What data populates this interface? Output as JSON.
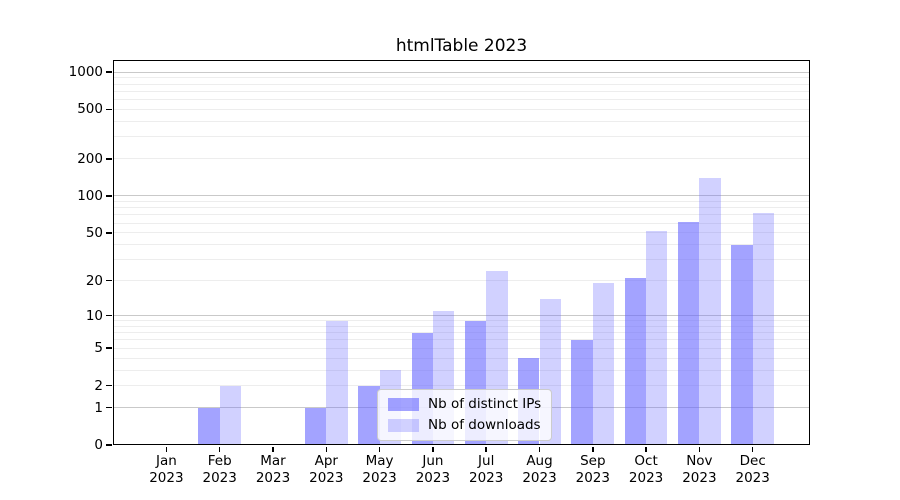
{
  "title": "htmlTable 2023",
  "chart_data": {
    "type": "bar",
    "title": "htmlTable 2023",
    "x_tick_months": [
      "Jan",
      "Feb",
      "Mar",
      "Apr",
      "May",
      "Jun",
      "Jul",
      "Aug",
      "Sep",
      "Oct",
      "Nov",
      "Dec"
    ],
    "x_tick_year": "2023",
    "series": [
      {
        "name": "Nb of distinct IPs",
        "color": "rgba(102,102,255,0.6)",
        "values": [
          0,
          1,
          0,
          1,
          2,
          7,
          9,
          4,
          6,
          21,
          61,
          40
        ]
      },
      {
        "name": "Nb of downloads",
        "color": "rgba(102,102,255,0.3)",
        "values": [
          0,
          2,
          0,
          9,
          3,
          11,
          24,
          14,
          19,
          52,
          139,
          73
        ]
      }
    ],
    "y_ticks": [
      0,
      1,
      2,
      5,
      10,
      20,
      50,
      100,
      200,
      500,
      1000
    ],
    "y_minor_gridlines": [
      2,
      3,
      4,
      5,
      6,
      7,
      8,
      9,
      20,
      30,
      40,
      50,
      60,
      70,
      80,
      90,
      200,
      300,
      400,
      500,
      600,
      700,
      800,
      900
    ],
    "y_major_gridlines": [
      1,
      10,
      100,
      1000
    ],
    "y_scale": "log10(1+v)",
    "ylim_top_value": 1280,
    "grid": "horizontal only",
    "legend_position": "lower center inside plot",
    "xlabel": "",
    "ylabel": ""
  },
  "colors": {
    "bar_base": "#6666ff",
    "series_dark": "rgba(102,102,255,0.6)",
    "series_light": "rgba(102,102,255,0.3)",
    "gridline_minor": "#ededed",
    "gridline_major": "#c9c9c9",
    "spine": "#000000",
    "background": "#ffffff",
    "legend_border": "#cccccc"
  }
}
